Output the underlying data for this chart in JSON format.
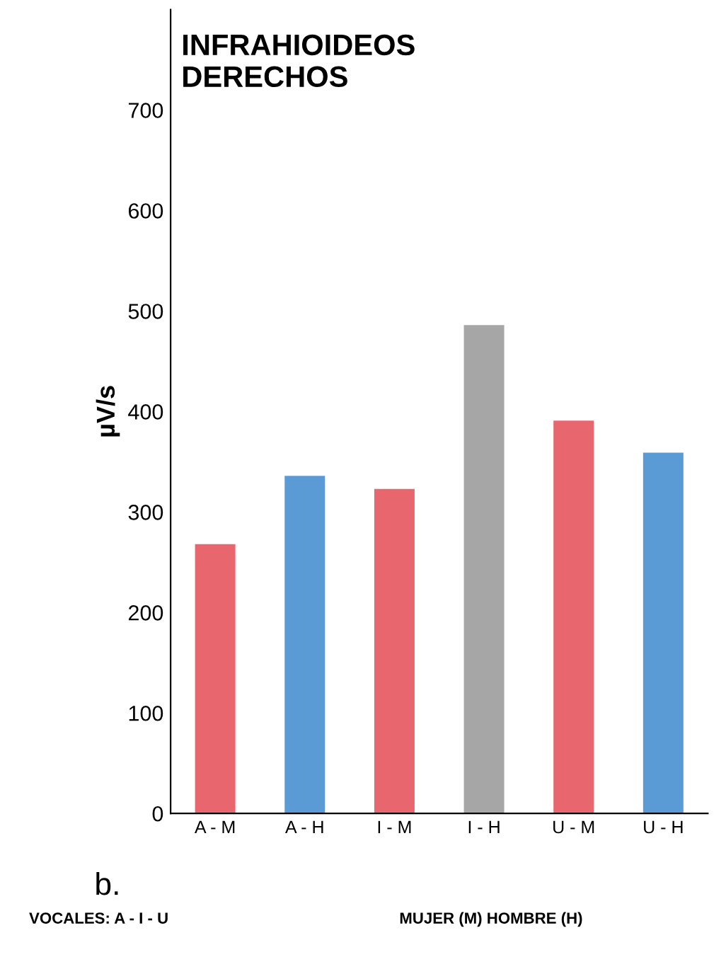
{
  "chart_data": {
    "type": "bar",
    "title": "INFRAHIOIDEOS\nDERECHOS",
    "ylabel": "µV/s",
    "categories": [
      "A - M",
      "A - H",
      "I - M",
      "I - H",
      "U - M",
      "U - H"
    ],
    "values": [
      268,
      336,
      323,
      486,
      391,
      359
    ],
    "colors": [
      "#e8666e",
      "#5b9bd5",
      "#e8666e",
      "#a6a6a6",
      "#e8666e",
      "#5b9bd5"
    ],
    "ylim": [
      0,
      800
    ],
    "yticks": [
      0,
      100,
      200,
      300,
      400,
      500,
      600,
      700
    ],
    "grid": false,
    "annotations": [
      "b.",
      "VOCALES: A - I - U",
      "MUJER (M) HOMBRE (H)"
    ]
  }
}
